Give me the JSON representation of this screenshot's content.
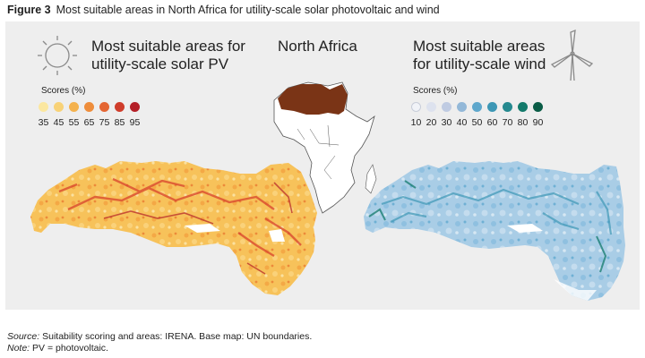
{
  "figure": {
    "label": "Figure 3",
    "title": "Most suitable areas in North Africa for utility-scale solar photovoltaic and wind"
  },
  "solar": {
    "title_line1": "Most suitable areas for",
    "title_line2": "utility-scale solar PV",
    "scores_label": "Scores (%)",
    "icon": "sun-icon",
    "legend": [
      {
        "value": "35",
        "color": "#fbe7a0"
      },
      {
        "value": "45",
        "color": "#f8d277"
      },
      {
        "value": "55",
        "color": "#f4b24e"
      },
      {
        "value": "65",
        "color": "#ee8d3b"
      },
      {
        "value": "75",
        "color": "#e46633"
      },
      {
        "value": "85",
        "color": "#cf3d2b"
      },
      {
        "value": "95",
        "color": "#b41f27"
      }
    ]
  },
  "center": {
    "title": "North Africa",
    "highlight_color": "#7a3416"
  },
  "wind": {
    "title_line1": "Most suitable areas",
    "title_line2": "for utility-scale wind",
    "scores_label": "Scores (%)",
    "icon": "wind-turbine-icon",
    "legend": [
      {
        "value": "10",
        "color": "#f1f3f8"
      },
      {
        "value": "20",
        "color": "#dde2ee"
      },
      {
        "value": "30",
        "color": "#bfcbe2"
      },
      {
        "value": "40",
        "color": "#93b8d8"
      },
      {
        "value": "50",
        "color": "#5ea7cc"
      },
      {
        "value": "60",
        "color": "#3d97b5"
      },
      {
        "value": "70",
        "color": "#25898f"
      },
      {
        "value": "80",
        "color": "#137a6b"
      },
      {
        "value": "90",
        "color": "#0a5c46"
      }
    ]
  },
  "footer": {
    "source_label": "Source:",
    "source_text": " Suitability scoring and areas: IRENA. Base map: UN boundaries.",
    "note_label": "Note:",
    "note_text": " PV = photovoltaic."
  }
}
